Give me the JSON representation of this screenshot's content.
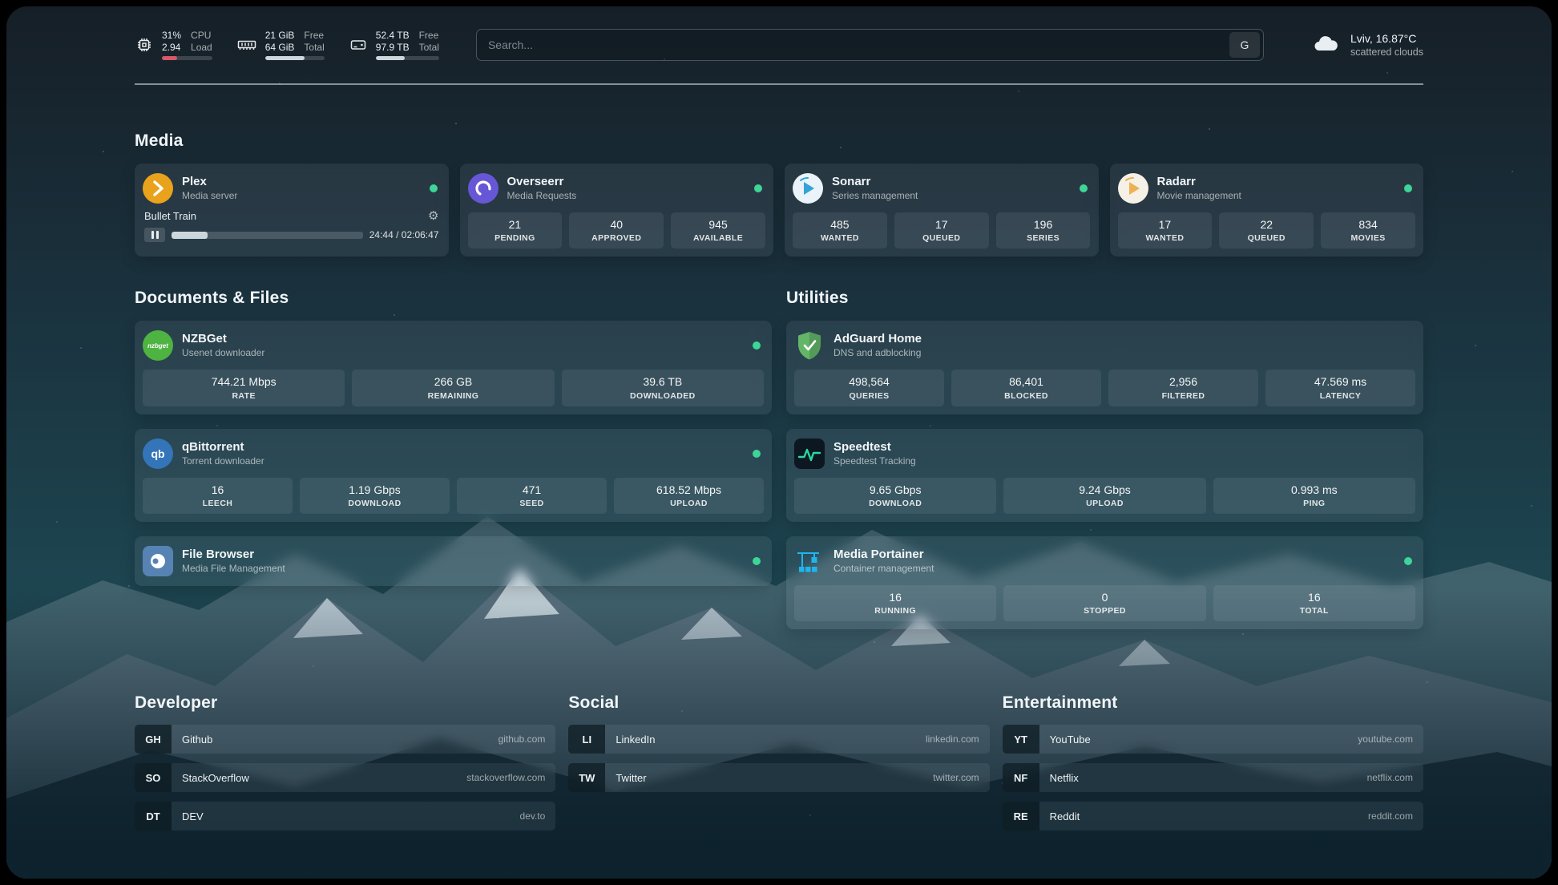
{
  "colors": {
    "status": "#3ed598",
    "cpu_bar": "#d75867",
    "bar_light": "#ccd7dc",
    "plex": "#e9a21b",
    "overseerr": "#6756d6",
    "sonarr": "#35a3d7",
    "radarr": "#efb054",
    "nzbget": "#4eb341",
    "qbittorrent": "#3375b8",
    "filebrowser": "#5683b4",
    "adguard": "#63b568",
    "speedtest": "#2bd99f",
    "portainer": "#1fb5f0"
  },
  "topbar": {
    "resources": [
      {
        "value_top": "31%",
        "value_bottom": "2.94",
        "label_top": "CPU",
        "label_bottom": "Load",
        "progress": 31
      },
      {
        "value_top": "21 GiB",
        "value_bottom": "64 GiB",
        "label_top": "Free",
        "label_bottom": "Total",
        "progress": 67
      },
      {
        "value_top": "52.4 TB",
        "value_bottom": "97.9 TB",
        "label_top": "Free",
        "label_bottom": "Total",
        "progress": 46
      }
    ],
    "search": {
      "placeholder": "Search...",
      "provider_label": "G"
    },
    "weather": {
      "location": "Lviv, 16.87°C",
      "condition": "scattered clouds"
    }
  },
  "media": {
    "title": "Media",
    "plex": {
      "name": "Plex",
      "subtitle": "Media server",
      "now_playing": "Bullet Train",
      "time_display": "24:44 / 02:06:47",
      "progress_pct": 19
    },
    "overseerr": {
      "name": "Overseerr",
      "subtitle": "Media Requests",
      "stats": [
        {
          "value": "21",
          "label": "PENDING"
        },
        {
          "value": "40",
          "label": "APPROVED"
        },
        {
          "value": "945",
          "label": "AVAILABLE"
        }
      ]
    },
    "sonarr": {
      "name": "Sonarr",
      "subtitle": "Series management",
      "stats": [
        {
          "value": "485",
          "label": "WANTED"
        },
        {
          "value": "17",
          "label": "QUEUED"
        },
        {
          "value": "196",
          "label": "SERIES"
        }
      ]
    },
    "radarr": {
      "name": "Radarr",
      "subtitle": "Movie management",
      "stats": [
        {
          "value": "17",
          "label": "WANTED"
        },
        {
          "value": "22",
          "label": "QUEUED"
        },
        {
          "value": "834",
          "label": "MOVIES"
        }
      ]
    }
  },
  "documents": {
    "title": "Documents & Files",
    "nzbget": {
      "name": "NZBGet",
      "subtitle": "Usenet downloader",
      "stats": [
        {
          "value": "744.21 Mbps",
          "label": "RATE"
        },
        {
          "value": "266 GB",
          "label": "REMAINING"
        },
        {
          "value": "39.6 TB",
          "label": "DOWNLOADED"
        }
      ]
    },
    "qbittorrent": {
      "name": "qBittorrent",
      "subtitle": "Torrent downloader",
      "stats": [
        {
          "value": "16",
          "label": "LEECH"
        },
        {
          "value": "1.19 Gbps",
          "label": "DOWNLOAD"
        },
        {
          "value": "471",
          "label": "SEED"
        },
        {
          "value": "618.52 Mbps",
          "label": "UPLOAD"
        }
      ]
    },
    "filebrowser": {
      "name": "File Browser",
      "subtitle": "Media File Management"
    }
  },
  "utilities": {
    "title": "Utilities",
    "adguard": {
      "name": "AdGuard Home",
      "subtitle": "DNS and adblocking",
      "stats": [
        {
          "value": "498,564",
          "label": "QUERIES"
        },
        {
          "value": "86,401",
          "label": "BLOCKED"
        },
        {
          "value": "2,956",
          "label": "FILTERED"
        },
        {
          "value": "47.569 ms",
          "label": "LATENCY"
        }
      ]
    },
    "speedtest": {
      "name": "Speedtest",
      "subtitle": "Speedtest Tracking",
      "stats": [
        {
          "value": "9.65 Gbps",
          "label": "DOWNLOAD"
        },
        {
          "value": "9.24 Gbps",
          "label": "UPLOAD"
        },
        {
          "value": "0.993 ms",
          "label": "PING"
        }
      ]
    },
    "portainer": {
      "name": "Media Portainer",
      "subtitle": "Container management",
      "stats": [
        {
          "value": "16",
          "label": "RUNNING"
        },
        {
          "value": "0",
          "label": "STOPPED"
        },
        {
          "value": "16",
          "label": "TOTAL"
        }
      ]
    }
  },
  "bookmarks": {
    "developer": {
      "title": "Developer",
      "items": [
        {
          "abbr": "GH",
          "name": "Github",
          "url": "github.com"
        },
        {
          "abbr": "SO",
          "name": "StackOverflow",
          "url": "stackoverflow.com"
        },
        {
          "abbr": "DT",
          "name": "DEV",
          "url": "dev.to"
        }
      ]
    },
    "social": {
      "title": "Social",
      "items": [
        {
          "abbr": "LI",
          "name": "LinkedIn",
          "url": "linkedin.com"
        },
        {
          "abbr": "TW",
          "name": "Twitter",
          "url": "twitter.com"
        }
      ]
    },
    "entertainment": {
      "title": "Entertainment",
      "items": [
        {
          "abbr": "YT",
          "name": "YouTube",
          "url": "youtube.com"
        },
        {
          "abbr": "NF",
          "name": "Netflix",
          "url": "netflix.com"
        },
        {
          "abbr": "RE",
          "name": "Reddit",
          "url": "reddit.com"
        }
      ]
    }
  }
}
